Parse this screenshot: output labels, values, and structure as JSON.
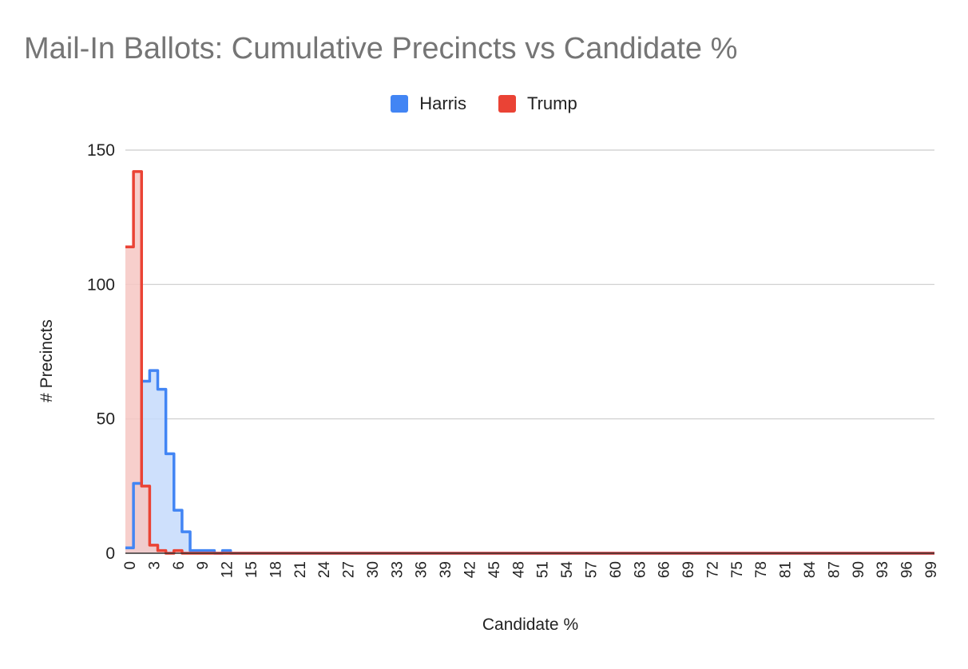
{
  "chart_data": {
    "type": "area",
    "title": "Mail-In Ballots: Cumulative Precincts vs Candidate %",
    "xlabel": "Candidate %",
    "ylabel": "# Precincts",
    "xlim": [
      0,
      100
    ],
    "ylim": [
      0,
      150
    ],
    "yticks": [
      0,
      50,
      100,
      150
    ],
    "xticks": [
      0,
      3,
      6,
      9,
      12,
      15,
      18,
      21,
      24,
      27,
      30,
      33,
      36,
      39,
      42,
      45,
      48,
      51,
      54,
      57,
      60,
      63,
      66,
      69,
      72,
      75,
      78,
      81,
      84,
      87,
      90,
      93,
      96,
      99
    ],
    "grid": true,
    "legend_position": "top-center",
    "step": true,
    "series": [
      {
        "name": "Harris",
        "color": "#4285F4",
        "fill": "#C6DAFC",
        "x": [
          0,
          1,
          2,
          3,
          4,
          5,
          6,
          7,
          8,
          9,
          10,
          11,
          12,
          13,
          14,
          100
        ],
        "values": [
          2,
          26,
          64,
          68,
          61,
          37,
          16,
          8,
          1,
          1,
          1,
          0,
          1,
          0,
          0,
          0
        ]
      },
      {
        "name": "Trump",
        "color": "#EA4335",
        "fill": "#F6C7C3",
        "x": [
          0,
          1,
          2,
          3,
          4,
          5,
          6,
          7,
          8,
          100
        ],
        "values": [
          114,
          142,
          25,
          3,
          1,
          0,
          1,
          0,
          0,
          0
        ]
      }
    ]
  }
}
